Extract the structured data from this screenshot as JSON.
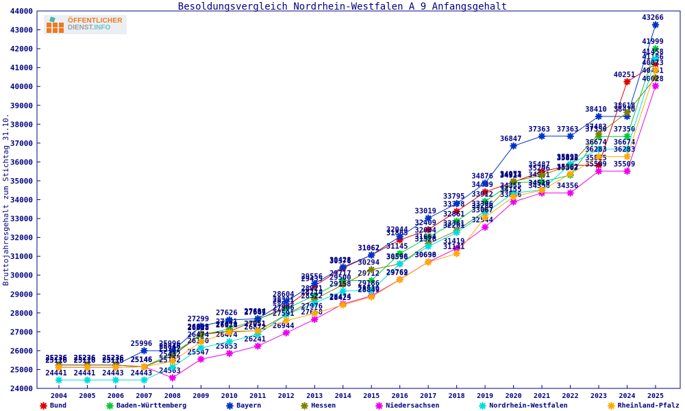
{
  "title": "Besoldungsvergleich Nordrhein-Westfalen A 9 Anfangsgehalt",
  "logo": {
    "line1": "ÖFFENTLICHER",
    "line2_part1": "DIENST.",
    "line2_part2": "INFO"
  },
  "colors": {
    "axis_text": "#000080",
    "border": "#000080",
    "background": "#ffffff",
    "logo_orange": "#f07820",
    "logo_teal": "#62c6ce"
  },
  "chart_data": {
    "type": "line",
    "title": "Besoldungsvergleich Nordrhein-Westfalen A 9 Anfangsgehalt",
    "xlabel": "",
    "ylabel": "Bruttojahresgehalt zum Stichtag 31.10.",
    "ylim": [
      24000,
      44000
    ],
    "ytick_step": 1000,
    "grid": false,
    "legend_position": "bottom",
    "marker": "asterisk",
    "point_labels": true,
    "x": [
      2004,
      2005,
      2006,
      2007,
      2008,
      2009,
      2010,
      2011,
      2012,
      2013,
      2014,
      2015,
      2016,
      2017,
      2018,
      2019,
      2020,
      2021,
      2022,
      2023,
      2024,
      2025
    ],
    "series": [
      {
        "name": "Bund",
        "color": "#e00000",
        "values": [
          25236,
          25236,
          25236,
          25146,
          25732,
          26853,
          27019,
          27641,
          28321,
          29435,
          30376,
          31067,
          31865,
          32409,
          33378,
          34409,
          34937,
          35487,
          35825,
          35825,
          40251,
          41186
        ]
      },
      {
        "name": "Baden-Württemberg",
        "color": "#00cc33",
        "values": [
          25116,
          25116,
          25116,
          25146,
          25846,
          26828,
          27151,
          27667,
          28221,
          28921,
          29717,
          29712,
          31145,
          32004,
          32861,
          33912,
          34914,
          34941,
          35302,
          37350,
          37350,
          41999
        ]
      },
      {
        "name": "Bayern",
        "color": "#0033cc",
        "values": [
          25236,
          25236,
          25236,
          25996,
          25996,
          27299,
          27626,
          27694,
          28604,
          29556,
          30428,
          31062,
          32044,
          33019,
          33795,
          34876,
          36847,
          37363,
          37363,
          38410,
          38410,
          43266
        ]
      },
      {
        "name": "Hessen",
        "color": "#808000",
        "values": [
          25236,
          25236,
          25236,
          25146,
          25732,
          26893,
          27019,
          27051,
          27906,
          28714,
          29500,
          30294,
          30596,
          31664,
          32361,
          33396,
          34973,
          35296,
          35835,
          37483,
          38618,
          40461
        ]
      },
      {
        "name": "Niedersachsen",
        "color": "#ee00ee",
        "values": [
          25116,
          25116,
          25116,
          25146,
          24563,
          25547,
          25853,
          26241,
          26944,
          27658,
          28474,
          28900,
          29769,
          30698,
          31419,
          32544,
          33886,
          34356,
          34356,
          35509,
          35509,
          40028
        ]
      },
      {
        "name": "Nordrhein-Westfalen",
        "color": "#00dddd",
        "values": [
          24441,
          24441,
          24443,
          24443,
          25132,
          26150,
          26474,
          26872,
          27906,
          28522,
          29158,
          29186,
          30598,
          31526,
          32261,
          33286,
          34355,
          34510,
          35892,
          36674,
          36674,
          41458
        ]
      },
      {
        "name": "Rheinland-Pfalz",
        "color": "#ffaa00",
        "values": [
          25116,
          25116,
          25116,
          25146,
          25432,
          26474,
          26974,
          27051,
          27591,
          27976,
          28425,
          28849,
          29762,
          30690,
          31141,
          33067,
          34155,
          34510,
          35362,
          36283,
          36283,
          40873
        ]
      }
    ]
  }
}
